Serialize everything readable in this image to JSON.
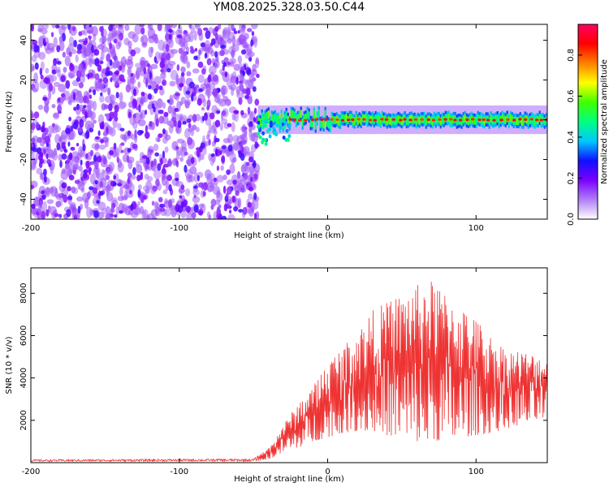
{
  "title": "YM08.2025.328.03.50.C44",
  "chart_data": [
    {
      "type": "heatmap",
      "name": "spectrogram",
      "xlabel": "Height of straight line (km)",
      "ylabel": "Frequency (Hz)",
      "xlim": [
        -200,
        148
      ],
      "ylim": [
        -50,
        48
      ],
      "xticks": [
        -200,
        -100,
        0,
        100
      ],
      "yticks": [
        -40,
        -20,
        0,
        20,
        40
      ],
      "noise_region": {
        "x": [
          -200,
          -47
        ],
        "y": [
          -50,
          48
        ],
        "amplitude_range": [
          0.1,
          0.25
        ]
      },
      "signal_band": {
        "x": [
          -47,
          148
        ],
        "center_freq": 0,
        "half_width_hz": 4,
        "peak_amplitude": 0.9
      },
      "colorbar": {
        "label": "Normalized spectral amplitude",
        "range": [
          0.0,
          0.95
        ],
        "ticks": [
          0.0,
          0.2,
          0.4,
          0.6,
          0.8
        ],
        "tick_labels": [
          "0.0",
          "0.2",
          "0.4",
          "0.6",
          "0.8"
        ],
        "colors": [
          "#ffffff",
          "#b07ef8",
          "#7b00ff",
          "#1010ff",
          "#00c8ff",
          "#00ff80",
          "#40ff00",
          "#ffff00",
          "#ff8000",
          "#ff0000",
          "#ff0060"
        ]
      }
    },
    {
      "type": "line",
      "name": "snr",
      "xlabel": "Height of straight line (km)",
      "ylabel": "SNR (10 * v/v)",
      "xlim": [
        -200,
        148
      ],
      "ylim": [
        0,
        9200
      ],
      "xticks": [
        -200,
        -100,
        0,
        100
      ],
      "yticks": [
        2000,
        4000,
        6000,
        8000
      ],
      "color": "#ee3333",
      "envelope": {
        "x": [
          -200,
          -100,
          -50,
          -40,
          -35,
          -30,
          -20,
          -10,
          0,
          10,
          20,
          30,
          40,
          50,
          60,
          70,
          80,
          90,
          100,
          110,
          120,
          130,
          140,
          148
        ],
        "low": [
          50,
          60,
          60,
          150,
          300,
          500,
          700,
          1000,
          1200,
          1400,
          1500,
          1500,
          1300,
          1200,
          1000,
          1000,
          1100,
          1200,
          1300,
          1400,
          1600,
          1800,
          2000,
          2100
        ],
        "high": [
          150,
          170,
          180,
          700,
          1200,
          1800,
          2800,
          3600,
          4800,
          5500,
          6200,
          7200,
          7600,
          8000,
          8400,
          8600,
          8000,
          7400,
          6800,
          6000,
          5400,
          5300,
          5100,
          5000
        ]
      }
    }
  ]
}
